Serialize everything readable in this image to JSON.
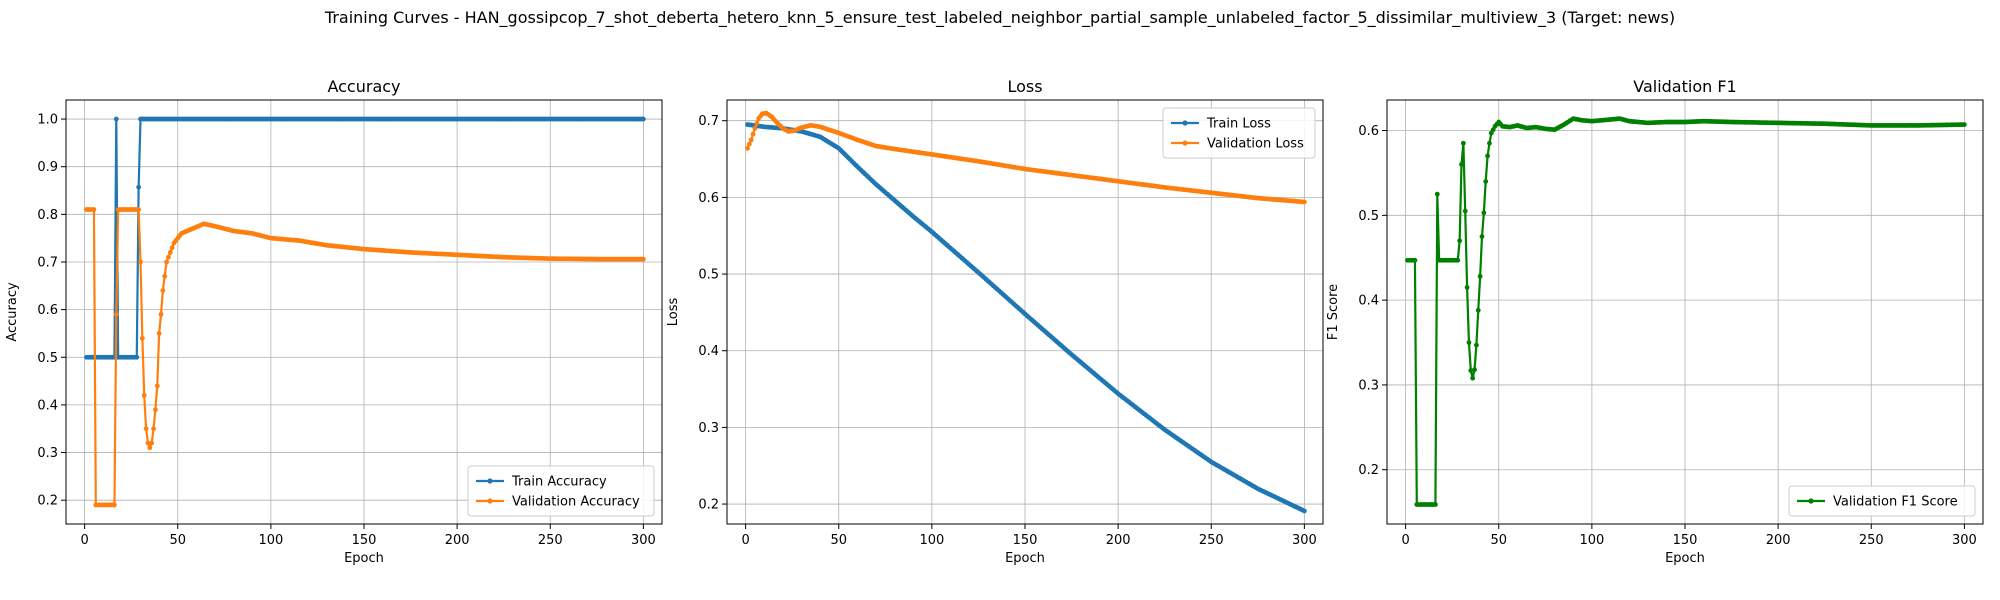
{
  "suptitle": "Training Curves - HAN_gossipcop_7_shot_deberta_hetero_knn_5_ensure_test_labeled_neighbor_partial_sample_unlabeled_factor_5_dissimilar_multiview_3 (Target: news)",
  "colors": {
    "train": "#1f77b4",
    "val": "#ff7f0e",
    "f1": "#008000",
    "grid": "#b0b0b0"
  },
  "chart_data": [
    {
      "type": "line",
      "title": "Accuracy",
      "xlabel": "Epoch",
      "ylabel": "Accuracy",
      "xlim": [
        -10,
        310
      ],
      "ylim": [
        0.15,
        1.04
      ],
      "xticks": [
        0,
        50,
        100,
        150,
        200,
        250,
        300
      ],
      "yticks": [
        0.2,
        0.3,
        0.4,
        0.5,
        0.6,
        0.7,
        0.8,
        0.9,
        1.0
      ],
      "ytick_labels": [
        "0.2",
        "0.3",
        "0.4",
        "0.5",
        "0.6",
        "0.7",
        "0.8",
        "0.9",
        "1.0"
      ],
      "grid": true,
      "legend": "lower-right",
      "series": [
        {
          "name": "Train Accuracy",
          "color": "#1f77b4",
          "points": [
            [
              1,
              0.5
            ],
            [
              16,
              0.5
            ],
            [
              17,
              1.0
            ],
            [
              18,
              0.5
            ],
            [
              28,
              0.5
            ],
            [
              29,
              0.857
            ],
            [
              30,
              1.0
            ],
            [
              300,
              1.0
            ]
          ]
        },
        {
          "name": "Validation Accuracy",
          "color": "#ff7f0e",
          "points": [
            [
              1,
              0.81
            ],
            [
              5,
              0.81
            ],
            [
              6,
              0.19
            ],
            [
              16,
              0.19
            ],
            [
              17,
              0.59
            ],
            [
              18,
              0.81
            ],
            [
              29,
              0.81
            ],
            [
              30,
              0.7
            ],
            [
              31,
              0.54
            ],
            [
              32,
              0.42
            ],
            [
              33,
              0.35
            ],
            [
              34,
              0.32
            ],
            [
              35,
              0.31
            ],
            [
              36,
              0.32
            ],
            [
              37,
              0.35
            ],
            [
              38,
              0.39
            ],
            [
              39,
              0.44
            ],
            [
              40,
              0.55
            ],
            [
              41,
              0.59
            ],
            [
              42,
              0.64
            ],
            [
              43,
              0.67
            ],
            [
              44,
              0.7
            ],
            [
              46,
              0.72
            ],
            [
              48,
              0.74
            ],
            [
              52,
              0.76
            ],
            [
              58,
              0.77
            ],
            [
              64,
              0.78
            ],
            [
              70,
              0.775
            ],
            [
              80,
              0.765
            ],
            [
              90,
              0.76
            ],
            [
              100,
              0.75
            ],
            [
              115,
              0.745
            ],
            [
              130,
              0.735
            ],
            [
              150,
              0.727
            ],
            [
              175,
              0.72
            ],
            [
              200,
              0.715
            ],
            [
              225,
              0.71
            ],
            [
              250,
              0.707
            ],
            [
              275,
              0.706
            ],
            [
              300,
              0.706
            ]
          ]
        }
      ]
    },
    {
      "type": "line",
      "title": "Loss",
      "xlabel": "Epoch",
      "ylabel": "Loss",
      "xlim": [
        -10,
        310
      ],
      "ylim": [
        0.174,
        0.727
      ],
      "xticks": [
        0,
        50,
        100,
        150,
        200,
        250,
        300
      ],
      "yticks": [
        0.2,
        0.3,
        0.4,
        0.5,
        0.6,
        0.7
      ],
      "ytick_labels": [
        "0.2",
        "0.3",
        "0.4",
        "0.5",
        "0.6",
        "0.7"
      ],
      "grid": true,
      "legend": "upper-right",
      "series": [
        {
          "name": "Train Loss",
          "color": "#1f77b4",
          "points": [
            [
              1,
              0.695
            ],
            [
              10,
              0.692
            ],
            [
              20,
              0.69
            ],
            [
              30,
              0.686
            ],
            [
              40,
              0.679
            ],
            [
              50,
              0.664
            ],
            [
              60,
              0.64
            ],
            [
              70,
              0.617
            ],
            [
              80,
              0.596
            ],
            [
              90,
              0.575
            ],
            [
              100,
              0.555
            ],
            [
              125,
              0.502
            ],
            [
              150,
              0.448
            ],
            [
              175,
              0.395
            ],
            [
              200,
              0.344
            ],
            [
              225,
              0.297
            ],
            [
              250,
              0.255
            ],
            [
              275,
              0.22
            ],
            [
              300,
              0.191
            ]
          ]
        },
        {
          "name": "Validation Loss",
          "color": "#ff7f0e",
          "points": [
            [
              1,
              0.664
            ],
            [
              3,
              0.675
            ],
            [
              5,
              0.69
            ],
            [
              7,
              0.703
            ],
            [
              9,
              0.709
            ],
            [
              11,
              0.71
            ],
            [
              14,
              0.705
            ],
            [
              17,
              0.697
            ],
            [
              20,
              0.69
            ],
            [
              23,
              0.686
            ],
            [
              26,
              0.687
            ],
            [
              30,
              0.691
            ],
            [
              35,
              0.694
            ],
            [
              40,
              0.692
            ],
            [
              50,
              0.684
            ],
            [
              60,
              0.675
            ],
            [
              70,
              0.667
            ],
            [
              80,
              0.663
            ],
            [
              100,
              0.656
            ],
            [
              125,
              0.647
            ],
            [
              150,
              0.637
            ],
            [
              175,
              0.629
            ],
            [
              200,
              0.621
            ],
            [
              225,
              0.613
            ],
            [
              250,
              0.606
            ],
            [
              275,
              0.599
            ],
            [
              300,
              0.594
            ]
          ]
        }
      ]
    },
    {
      "type": "line",
      "title": "Validation F1",
      "xlabel": "Epoch",
      "ylabel": "F1 Score",
      "xlim": [
        -10,
        310
      ],
      "ylim": [
        0.136,
        0.636
      ],
      "xticks": [
        0,
        50,
        100,
        150,
        200,
        250,
        300
      ],
      "yticks": [
        0.2,
        0.3,
        0.4,
        0.5,
        0.6
      ],
      "ytick_labels": [
        "0.2",
        "0.3",
        "0.4",
        "0.5",
        "0.6"
      ],
      "grid": true,
      "legend": "lower-right",
      "series": [
        {
          "name": "Validation F1 Score",
          "color": "#008000",
          "points": [
            [
              1,
              0.447
            ],
            [
              5,
              0.447
            ],
            [
              6,
              0.159
            ],
            [
              16,
              0.159
            ],
            [
              17,
              0.525
            ],
            [
              18,
              0.447
            ],
            [
              28,
              0.447
            ],
            [
              29,
              0.47
            ],
            [
              30,
              0.56
            ],
            [
              31,
              0.585
            ],
            [
              32,
              0.505
            ],
            [
              33,
              0.415
            ],
            [
              34,
              0.35
            ],
            [
              35,
              0.317
            ],
            [
              36,
              0.308
            ],
            [
              37,
              0.318
            ],
            [
              38,
              0.347
            ],
            [
              39,
              0.388
            ],
            [
              40,
              0.428
            ],
            [
              41,
              0.475
            ],
            [
              42,
              0.503
            ],
            [
              43,
              0.54
            ],
            [
              44,
              0.57
            ],
            [
              45,
              0.585
            ],
            [
              46,
              0.597
            ],
            [
              48,
              0.605
            ],
            [
              50,
              0.61
            ],
            [
              52,
              0.605
            ],
            [
              56,
              0.604
            ],
            [
              60,
              0.606
            ],
            [
              65,
              0.603
            ],
            [
              70,
              0.604
            ],
            [
              75,
              0.602
            ],
            [
              80,
              0.601
            ],
            [
              85,
              0.607
            ],
            [
              90,
              0.614
            ],
            [
              95,
              0.612
            ],
            [
              100,
              0.611
            ],
            [
              110,
              0.613
            ],
            [
              115,
              0.614
            ],
            [
              120,
              0.611
            ],
            [
              130,
              0.609
            ],
            [
              140,
              0.61
            ],
            [
              150,
              0.61
            ],
            [
              160,
              0.611
            ],
            [
              175,
              0.61
            ],
            [
              200,
              0.609
            ],
            [
              225,
              0.608
            ],
            [
              250,
              0.606
            ],
            [
              275,
              0.606
            ],
            [
              300,
              0.607
            ]
          ]
        }
      ]
    }
  ]
}
